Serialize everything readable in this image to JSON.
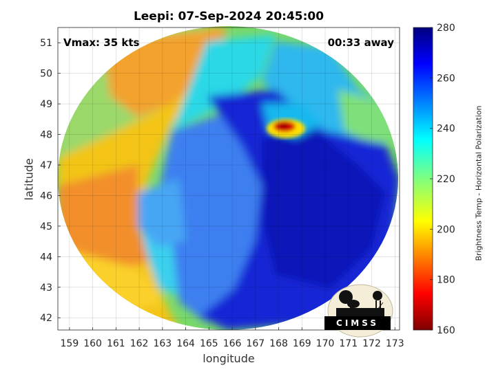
{
  "title": "Leepi: 07-Sep-2024 20:45:00",
  "vmax": "Vmax: 35 kts",
  "time_away": "00:33 away",
  "logo_text": "CIMSS",
  "chart_data": {
    "type": "heatmap",
    "title": "Leepi: 07-Sep-2024 20:45:00",
    "xlabel": "longitude",
    "ylabel": "latitude",
    "xlim": [
      158.5,
      173.2
    ],
    "ylim": [
      41.6,
      51.5
    ],
    "xticks": [
      "159",
      "160",
      "161",
      "162",
      "163",
      "164",
      "165",
      "166",
      "167",
      "168",
      "169",
      "170",
      "171",
      "172",
      "173"
    ],
    "yticks": [
      "42",
      "43",
      "44",
      "45",
      "46",
      "47",
      "48",
      "49",
      "50",
      "51"
    ],
    "grid": true,
    "colorbar": {
      "label": "Brightness Temp - Horizontal Polarization",
      "range": [
        160,
        280
      ],
      "ticks": [
        "160",
        "180",
        "200",
        "220",
        "240",
        "260",
        "280"
      ]
    }
  }
}
